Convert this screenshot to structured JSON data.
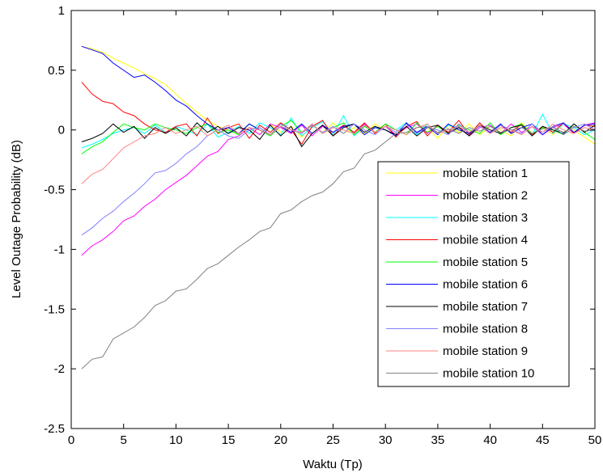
{
  "chart_data": {
    "type": "line",
    "title": "",
    "xlabel": "Waktu (Tp)",
    "ylabel": "Level Outage Probability (dB)",
    "xlim": [
      0,
      50
    ],
    "ylim": [
      -2.5,
      1
    ],
    "xticks": [
      0,
      5,
      10,
      15,
      20,
      25,
      30,
      35,
      40,
      45,
      50
    ],
    "yticks": [
      -2.5,
      -2,
      -1.5,
      -1,
      -0.5,
      0,
      0.5,
      1
    ],
    "xtick_labels": [
      "0",
      "5",
      "10",
      "15",
      "20",
      "25",
      "30",
      "35",
      "40",
      "45",
      "50"
    ],
    "ytick_labels": [
      "-2.5",
      "-2",
      "-1.5",
      "-1",
      "-0.5",
      "0",
      "0.5",
      "1"
    ],
    "grid": false,
    "legend_position": "right",
    "x": [
      1,
      2,
      3,
      4,
      5,
      6,
      7,
      8,
      9,
      10,
      11,
      12,
      13,
      14,
      15,
      16,
      17,
      18,
      19,
      20,
      21,
      22,
      23,
      24,
      25,
      26,
      27,
      28,
      29,
      30,
      31,
      32,
      33,
      34,
      35,
      36,
      37,
      38,
      39,
      40,
      41,
      42,
      43,
      44,
      45,
      46,
      47,
      48,
      49,
      50
    ],
    "series": [
      {
        "name": "mobile station 1",
        "color": "#ffff00",
        "values": [
          0.7,
          0.68,
          0.65,
          0.6,
          0.56,
          0.52,
          0.47,
          0.43,
          0.38,
          0.3,
          0.22,
          0.15,
          0.08,
          0.03,
          0.0,
          -0.03,
          0.02,
          -0.04,
          0.05,
          -0.02,
          0.03,
          -0.06,
          0.04,
          -0.02,
          0.06,
          -0.03,
          0.02,
          -0.04,
          0.05,
          0.0,
          -0.05,
          0.06,
          -0.03,
          0.02,
          -0.07,
          0.04,
          -0.02,
          0.05,
          -0.04,
          0.03,
          0.0,
          -0.05,
          0.06,
          -0.03,
          0.02,
          -0.04,
          0.05,
          0.0,
          -0.06,
          -0.12
        ]
      },
      {
        "name": "mobile station 2",
        "color": "#ff00ff",
        "values": [
          -1.05,
          -0.97,
          -0.92,
          -0.85,
          -0.76,
          -0.72,
          -0.64,
          -0.58,
          -0.5,
          -0.44,
          -0.38,
          -0.3,
          -0.22,
          -0.18,
          -0.08,
          -0.05,
          0.02,
          -0.04,
          0.05,
          0.02,
          -0.03,
          0.04,
          -0.05,
          0.03,
          -0.02,
          0.04,
          -0.03,
          0.05,
          -0.02,
          0.03,
          -0.04,
          0.02,
          0.05,
          -0.03,
          0.04,
          -0.02,
          0.03,
          -0.05,
          0.02,
          0.04,
          -0.03,
          0.05,
          -0.02,
          0.03,
          -0.04,
          0.02,
          0.05,
          -0.03,
          0.04,
          0.06
        ]
      },
      {
        "name": "mobile station 3",
        "color": "#00ffff",
        "values": [
          -0.15,
          -0.12,
          -0.08,
          -0.03,
          0.0,
          0.02,
          -0.03,
          0.04,
          -0.02,
          0.03,
          0.0,
          -0.04,
          0.05,
          -0.06,
          -0.02,
          0.03,
          -0.03,
          0.06,
          0.02,
          -0.04,
          0.1,
          -0.05,
          0.02,
          0.07,
          -0.04,
          0.12,
          -0.05,
          0.03,
          -0.02,
          0.05,
          0.0,
          0.06,
          -0.04,
          0.05,
          -0.03,
          0.04,
          0.02,
          -0.05,
          0.06,
          -0.03,
          0.04,
          -0.02,
          0.05,
          -0.04,
          0.13,
          -0.03,
          0.05,
          0.02,
          -0.04,
          0.0
        ]
      },
      {
        "name": "mobile station 4",
        "color": "#ff0000",
        "values": [
          0.4,
          0.3,
          0.24,
          0.22,
          0.15,
          0.12,
          0.05,
          0.0,
          -0.02,
          0.03,
          0.05,
          -0.05,
          0.1,
          -0.03,
          0.02,
          0.05,
          -0.07,
          0.04,
          -0.02,
          0.06,
          0.0,
          -0.12,
          0.03,
          0.08,
          -0.05,
          0.04,
          -0.02,
          0.06,
          -0.03,
          0.05,
          -0.06,
          0.03,
          0.07,
          -0.05,
          0.04,
          -0.02,
          0.08,
          -0.04,
          0.06,
          -0.03,
          0.04,
          -0.02,
          0.05,
          -0.04,
          0.03,
          -0.02,
          0.06,
          -0.03,
          0.04,
          0.03
        ]
      },
      {
        "name": "mobile station 5",
        "color": "#00ff00",
        "values": [
          -0.2,
          -0.14,
          -0.1,
          -0.02,
          0.05,
          0.02,
          0.0,
          0.05,
          0.02,
          0.0,
          -0.03,
          0.02,
          0.05,
          -0.02,
          0.0,
          -0.04,
          0.05,
          0.0,
          -0.05,
          0.03,
          0.08,
          -0.02,
          0.05,
          -0.03,
          0.02,
          0.06,
          -0.04,
          0.03,
          -0.02,
          0.05,
          0.0,
          -0.04,
          0.06,
          -0.02,
          0.03,
          -0.03,
          0.04,
          0.0,
          -0.03,
          0.06,
          -0.04,
          0.02,
          0.05,
          -0.03,
          0.02,
          0.0,
          -0.04,
          0.05,
          -0.02,
          -0.08
        ]
      },
      {
        "name": "mobile station 6",
        "color": "#0000ff",
        "values": [
          0.7,
          0.67,
          0.64,
          0.56,
          0.5,
          0.44,
          0.46,
          0.4,
          0.33,
          0.25,
          0.2,
          0.12,
          0.05,
          0.0,
          0.02,
          -0.03,
          0.05,
          0.0,
          -0.04,
          0.03,
          -0.02,
          0.05,
          -0.03,
          0.04,
          -0.02,
          0.03,
          0.05,
          -0.04,
          0.02,
          0.0,
          -0.05,
          0.06,
          -0.02,
          0.03,
          -0.04,
          0.05,
          0.0,
          -0.03,
          0.04,
          -0.02,
          0.05,
          -0.03,
          0.02,
          0.05,
          -0.04,
          0.03,
          0.06,
          -0.02,
          0.04,
          0.05
        ]
      },
      {
        "name": "mobile station 7",
        "color": "#000000",
        "values": [
          -0.1,
          -0.07,
          -0.03,
          0.05,
          -0.02,
          0.03,
          -0.07,
          0.02,
          -0.03,
          0.02,
          -0.05,
          0.06,
          -0.02,
          0.03,
          -0.03,
          0.02,
          0.0,
          -0.08,
          0.04,
          -0.05,
          0.03,
          -0.14,
          -0.03,
          0.04,
          -0.05,
          0.02,
          0.05,
          -0.02,
          0.03,
          0.0,
          -0.04,
          0.03,
          -0.05,
          0.02,
          0.04,
          -0.03,
          0.02,
          -0.05,
          0.04,
          0.0,
          -0.03,
          0.02,
          0.04,
          -0.05,
          0.03,
          0.0,
          -0.03,
          0.05,
          -0.02,
          0.04
        ]
      },
      {
        "name": "mobile station 8",
        "color": "#8080ff",
        "values": [
          -0.88,
          -0.82,
          -0.74,
          -0.68,
          -0.6,
          -0.53,
          -0.45,
          -0.36,
          -0.34,
          -0.28,
          -0.2,
          -0.14,
          -0.05,
          0.0,
          -0.05,
          -0.07,
          0.0,
          0.02,
          -0.04,
          0.05,
          0.0,
          -0.03,
          0.04,
          -0.02,
          0.03,
          -0.03,
          0.05,
          0.0,
          -0.04,
          0.03,
          -0.02,
          0.05,
          -0.03,
          0.02,
          0.0,
          -0.04,
          0.05,
          -0.02,
          0.03,
          -0.03,
          0.04,
          0.0,
          -0.03,
          0.05,
          -0.02,
          0.03,
          -0.04,
          0.02,
          0.05,
          0.0
        ]
      },
      {
        "name": "mobile station 9",
        "color": "#ff8080",
        "values": [
          -0.45,
          -0.37,
          -0.33,
          -0.24,
          -0.15,
          -0.1,
          -0.05,
          -0.03,
          0.02,
          -0.03,
          0.0,
          0.03,
          -0.05,
          0.0,
          0.04,
          -0.03,
          0.02,
          0.0,
          -0.04,
          0.03,
          0.0,
          -0.02,
          0.05,
          -0.03,
          0.02,
          0.0,
          -0.03,
          0.04,
          -0.02,
          0.03,
          0.0,
          -0.04,
          0.02,
          0.05,
          -0.03,
          0.0,
          0.03,
          -0.02,
          0.04,
          -0.03,
          0.02,
          0.0,
          -0.04,
          0.03,
          -0.02,
          0.05,
          0.0,
          -0.03,
          0.02,
          0.0
        ]
      },
      {
        "name": "mobile station 10",
        "color": "#808080",
        "values": [
          -2.0,
          -1.92,
          -1.9,
          -1.75,
          -1.7,
          -1.65,
          -1.57,
          -1.47,
          -1.43,
          -1.35,
          -1.33,
          -1.25,
          -1.16,
          -1.12,
          -1.05,
          -0.98,
          -0.92,
          -0.85,
          -0.82,
          -0.7,
          -0.67,
          -0.6,
          -0.55,
          -0.52,
          -0.45,
          -0.35,
          -0.32,
          -0.2,
          -0.17,
          -0.1,
          -0.03,
          -0.02,
          0.02,
          0.03,
          -0.02,
          0.01,
          -0.03,
          0.02,
          -0.01,
          0.03,
          -0.02,
          0.0,
          0.02,
          -0.03,
          0.01,
          0.02,
          -0.02,
          0.03,
          -0.01,
          0.0
        ]
      }
    ]
  }
}
